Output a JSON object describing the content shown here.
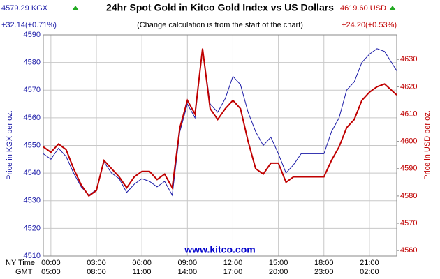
{
  "chart_data": {
    "type": "line",
    "title": "24hr Spot Gold in Kitco Gold Index vs US Dollars",
    "subtitle": "(Change calculation is from the start of the chart)",
    "left_quote": {
      "price": "4579.29 KGX",
      "change": "+32.14(+0.71%)"
    },
    "right_quote": {
      "price": "4619.60 USD",
      "change": "+24.20(+0.53%)"
    },
    "watermark": "www.kitco.com",
    "ylabel": "Price in KGX per oz.",
    "y2label": "Price in USD per oz.",
    "x_row_labels": [
      "NY Time",
      "GMT"
    ],
    "x": [
      -0.5,
      0,
      0.5,
      1,
      1.5,
      2,
      2.5,
      3,
      3.5,
      4,
      4.5,
      5,
      5.5,
      6,
      6.5,
      7,
      7.5,
      8,
      8.5,
      9,
      9.5,
      10,
      10.5,
      11,
      11.5,
      12,
      12.5,
      13,
      13.5,
      14,
      14.5,
      15,
      15.5,
      16,
      16.5,
      17,
      17.5,
      18,
      18.5,
      19,
      19.5,
      20,
      20.5,
      21,
      21.5,
      22,
      22.8
    ],
    "series": [
      {
        "name": "KGX",
        "color": "#1c1ca8",
        "axis": "y",
        "values": [
          4547,
          4545,
          4549,
          4546,
          4540,
          4535,
          4532,
          4534,
          4544,
          4540,
          4538,
          4533,
          4536,
          4538,
          4537,
          4535,
          4537,
          4532,
          4555,
          4565,
          4560,
          4585,
          4565,
          4562,
          4567,
          4575,
          4572,
          4562,
          4555,
          4550,
          4553,
          4547,
          4540,
          4543,
          4547,
          4547,
          4547,
          4547,
          4555,
          4560,
          4570,
          4573,
          4580,
          4583,
          4585,
          4584,
          4577
        ]
      },
      {
        "name": "USD",
        "color": "#c00000",
        "axis": "y2",
        "values": [
          4598,
          4596,
          4599,
          4597,
          4590,
          4584,
          4580,
          4582,
          4593,
          4590,
          4587,
          4583,
          4587,
          4589,
          4589,
          4586,
          4588,
          4583,
          4605,
          4615,
          4610,
          4634,
          4612,
          4608,
          4612,
          4615,
          4612,
          4600,
          4590,
          4588,
          4592,
          4592,
          4585,
          4587,
          4587,
          4587,
          4587,
          4587,
          4593,
          4598,
          4605,
          4608,
          4615,
          4618,
          4620,
          4621,
          4617
        ]
      }
    ],
    "xlim": [
      -0.5,
      22.8
    ],
    "xticks": [
      {
        "value": 0,
        "label": "00:00"
      },
      {
        "value": 3,
        "label": "03:00"
      },
      {
        "value": 6,
        "label": "06:00"
      },
      {
        "value": 9,
        "label": "09:00"
      },
      {
        "value": 12,
        "label": "12:00"
      },
      {
        "value": 15,
        "label": "15:00"
      },
      {
        "value": 18,
        "label": "18:00"
      },
      {
        "value": 21,
        "label": "21:00"
      }
    ],
    "xtick_labels_gmt": [
      "05:00",
      "08:00",
      "11:00",
      "14:00",
      "17:00",
      "20:00",
      "23:00",
      "02:00"
    ],
    "ylim": [
      4510,
      4590
    ],
    "yticks": [
      4510,
      4520,
      4530,
      4540,
      4550,
      4560,
      4570,
      4580,
      4590
    ],
    "y2lim": [
      4558,
      4639
    ],
    "y2ticks": [
      4560,
      4570,
      4580,
      4590,
      4600,
      4610,
      4620,
      4630
    ],
    "grid": true
  }
}
